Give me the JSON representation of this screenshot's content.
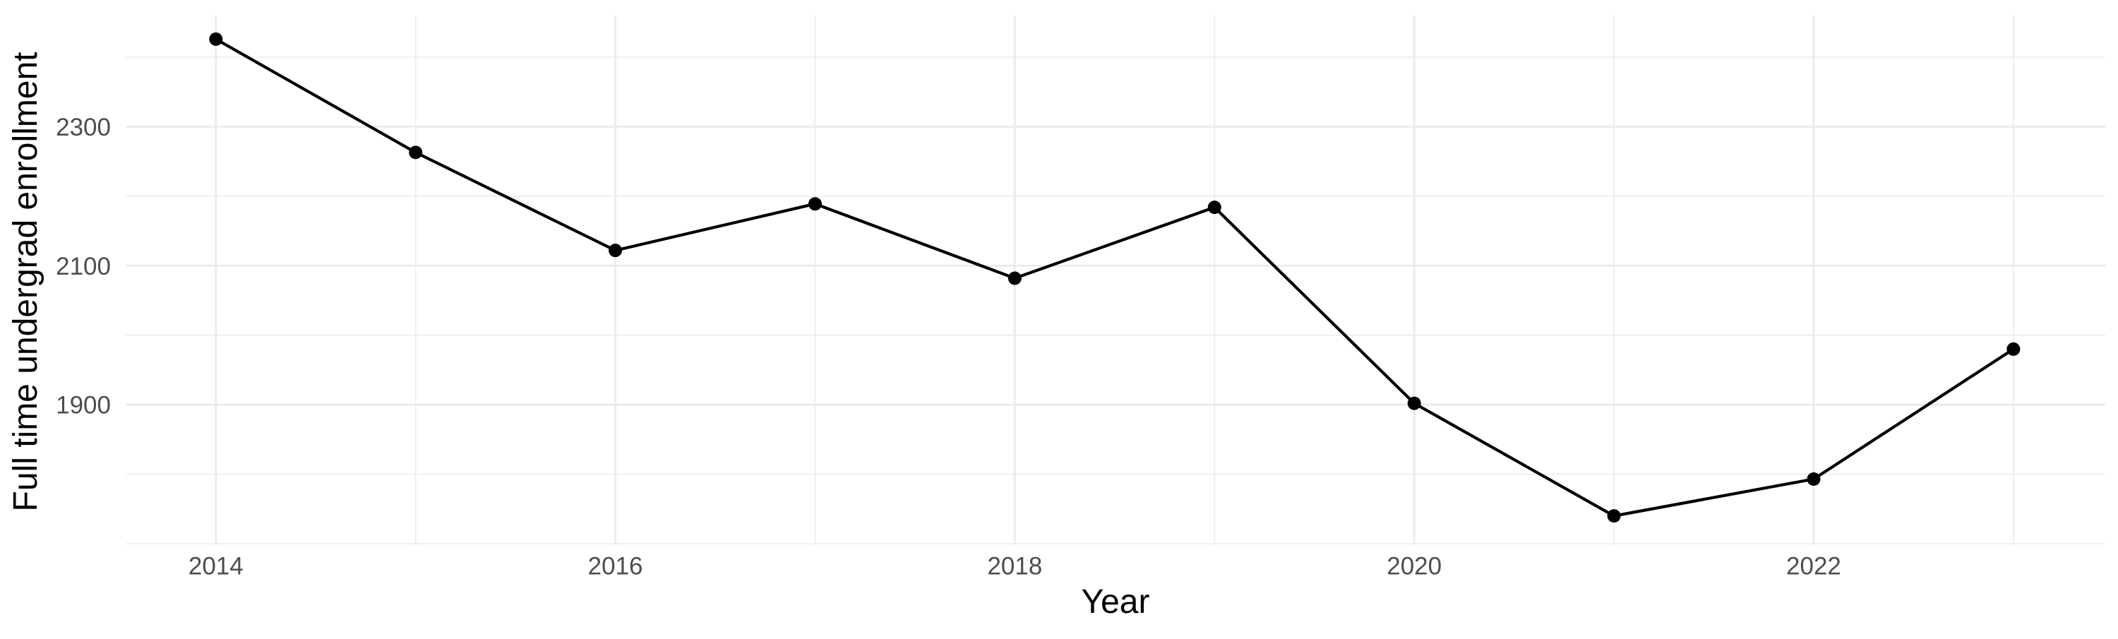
{
  "figure": {
    "background_color": "#FFFFFF"
  },
  "chart_data": {
    "type": "line",
    "title": "",
    "xlabel": "Year",
    "ylabel": "Full time undergrad enrollment",
    "series": [
      {
        "name": "Full time undergrad enrollment",
        "x": [
          2014,
          2015,
          2016,
          2017,
          2018,
          2019,
          2020,
          2021,
          2022,
          2023
        ],
        "y": [
          2426,
          2263,
          2122,
          2189,
          2082,
          2184,
          1902,
          1740,
          1793,
          1980
        ]
      }
    ],
    "x_ticks": {
      "major": [
        2014,
        2016,
        2018,
        2020,
        2022
      ],
      "minor": [
        2015,
        2017,
        2019,
        2021,
        2023
      ],
      "labels": [
        "2014",
        "2016",
        "2018",
        "2020",
        "2022"
      ]
    },
    "y_ticks": {
      "major": [
        1900,
        2100,
        2300
      ],
      "minor": [
        1700,
        1800,
        2000,
        2200,
        2400
      ],
      "labels": [
        "1900",
        "2100",
        "2300"
      ]
    },
    "xlim": [
      2013.55,
      2023.46
    ],
    "ylim": [
      1699,
      2460
    ],
    "grid": true,
    "legend": false,
    "marker": "point",
    "style": {
      "line_color": "#000000",
      "point_color": "#000000",
      "grid_color": "#EBEBEB",
      "tick_label_color": "#4D4D4D",
      "axis_title_color": "#000000"
    }
  }
}
